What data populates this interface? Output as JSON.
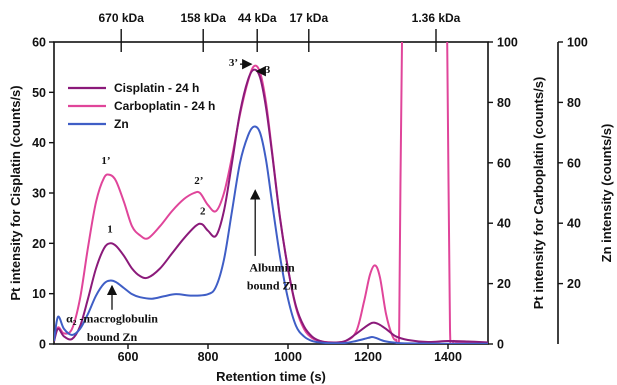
{
  "chart_data": {
    "type": "line",
    "xlabel": "Retention time (s)",
    "xlim": [
      415,
      1500
    ],
    "x_ticks": [
      600,
      800,
      1000,
      1200,
      1400
    ],
    "axes": {
      "left": {
        "label": "Pt intensity for Cisplatin (counts/s)",
        "lim": [
          0,
          60
        ],
        "ticks": [
          0,
          10,
          20,
          30,
          40,
          50,
          60
        ]
      },
      "right1": {
        "label": "Pt intensity for Carboplatin (counts/s)",
        "lim": [
          0,
          100
        ],
        "ticks": [
          0,
          20,
          40,
          60,
          80,
          100
        ]
      },
      "right2": {
        "label": "Zn intensity (counts/s)",
        "lim": [
          0,
          100
        ],
        "ticks": [
          20,
          40,
          60,
          80,
          100
        ]
      }
    },
    "mw_markers": [
      {
        "label": "670 kDa",
        "x": 583
      },
      {
        "label": "158 kDa",
        "x": 788
      },
      {
        "label": "44 kDa",
        "x": 923
      },
      {
        "label": "17 kDa",
        "x": 1052
      },
      {
        "label": "1.36 kDa",
        "x": 1370
      }
    ],
    "legend": {
      "position": "top-left"
    },
    "series": [
      {
        "name": "Cisplatin - 24 h",
        "axis": "left",
        "color": "#8b1a7a",
        "x": [
          415,
          425,
          440,
          460,
          480,
          500,
          520,
          540,
          555,
          570,
          590,
          610,
          630,
          650,
          680,
          710,
          740,
          770,
          785,
          800,
          820,
          840,
          860,
          880,
          900,
          915,
          930,
          945,
          960,
          980,
          1000,
          1020,
          1040,
          1060,
          1080,
          1100,
          1140,
          1170,
          1190,
          1210,
          1225,
          1245,
          1270,
          1300,
          1350,
          1400,
          1450,
          1500
        ],
        "values": [
          0.5,
          3.0,
          1.5,
          1.0,
          3.5,
          9.0,
          15.0,
          19.0,
          20.0,
          19.5,
          17.5,
          15.0,
          13.5,
          13.2,
          15.0,
          18.0,
          21.0,
          23.5,
          23.8,
          22.5,
          21.5,
          26.5,
          36.0,
          46.0,
          52.5,
          54.5,
          53.0,
          47.0,
          38.0,
          25.0,
          15.0,
          7.5,
          3.5,
          1.5,
          0.6,
          0.3,
          0.5,
          2.0,
          3.2,
          4.2,
          4.0,
          3.0,
          1.5,
          0.8,
          0.4,
          0.6,
          0.5,
          0.3
        ]
      },
      {
        "name": "Carboplatin - 24 h",
        "axis": "right1",
        "color": "#e0459a",
        "x": [
          415,
          425,
          440,
          460,
          480,
          500,
          520,
          540,
          555,
          570,
          590,
          610,
          630,
          650,
          680,
          710,
          740,
          765,
          780,
          800,
          820,
          840,
          860,
          880,
          900,
          915,
          930,
          945,
          960,
          980,
          1000,
          1020,
          1040,
          1060,
          1080,
          1100,
          1140,
          1170,
          1190,
          1205,
          1218,
          1230,
          1245,
          1260,
          1270,
          1278,
          1285,
          1300,
          1340,
          1390,
          1398,
          1405,
          1415,
          1440,
          1470,
          1500
        ],
        "values": [
          1.0,
          5.5,
          3.5,
          5.0,
          15.0,
          32.0,
          47.0,
          55.0,
          56.0,
          54.0,
          47.0,
          39.0,
          36.0,
          35.0,
          39.0,
          44.0,
          48.0,
          50.0,
          50.0,
          46.0,
          44.0,
          50.0,
          62.0,
          76.0,
          87.0,
          92.0,
          90.0,
          80.0,
          64.0,
          42.0,
          25.0,
          12.0,
          5.0,
          2.0,
          1.0,
          0.6,
          0.8,
          4.0,
          14.0,
          23.0,
          26.0,
          22.0,
          10.0,
          3.0,
          1.5,
          5.0,
          100.0,
          120.0,
          120.0,
          120.0,
          100.0,
          5.0,
          1.0,
          0.5,
          0.3,
          0.2
        ]
      },
      {
        "name": "Zn",
        "axis": "right2",
        "color": "#3f5ec6",
        "x": [
          415,
          425,
          440,
          460,
          480,
          500,
          520,
          540,
          555,
          570,
          590,
          610,
          630,
          660,
          690,
          720,
          760,
          800,
          820,
          840,
          860,
          880,
          900,
          915,
          930,
          945,
          960,
          980,
          1000,
          1020,
          1040,
          1060,
          1080,
          1100,
          1140,
          1170,
          1200,
          1210,
          1220,
          1240,
          1270,
          1300,
          1400,
          1500
        ],
        "values": [
          1.0,
          9.0,
          5.0,
          3.0,
          5.0,
          10.0,
          16.0,
          20.0,
          21.0,
          20.5,
          18.5,
          16.5,
          15.5,
          15.0,
          15.8,
          16.5,
          16.0,
          16.5,
          19.0,
          28.0,
          44.0,
          60.0,
          69.0,
          72.0,
          70.0,
          61.0,
          47.0,
          29.0,
          15.0,
          6.0,
          2.5,
          1.0,
          0.5,
          0.3,
          0.3,
          1.0,
          2.0,
          2.3,
          2.0,
          1.0,
          0.4,
          0.2,
          0.1,
          0.1
        ]
      }
    ],
    "annotations": [
      {
        "text": "1",
        "x": 555,
        "y": 22.2
      },
      {
        "text": "1’",
        "x": 545,
        "y": 35.8
      },
      {
        "text": "2",
        "x": 787,
        "y": 25.7
      },
      {
        "text": "2’",
        "x": 777,
        "y": 31.8
      },
      {
        "text": "3",
        "x": 942,
        "y": 53.8
      },
      {
        "text": "3’",
        "x": 875,
        "y": 55.2
      },
      {
        "text": "Albumin",
        "x": 960,
        "y": 14.4
      },
      {
        "text": "bound Zn",
        "x": 960,
        "y": 10.8
      },
      {
        "text": "α₂ -macroglobulin",
        "x": 560,
        "y": 4.3
      },
      {
        "text": "bound Zn",
        "x": 560,
        "y": 0.6
      }
    ]
  }
}
